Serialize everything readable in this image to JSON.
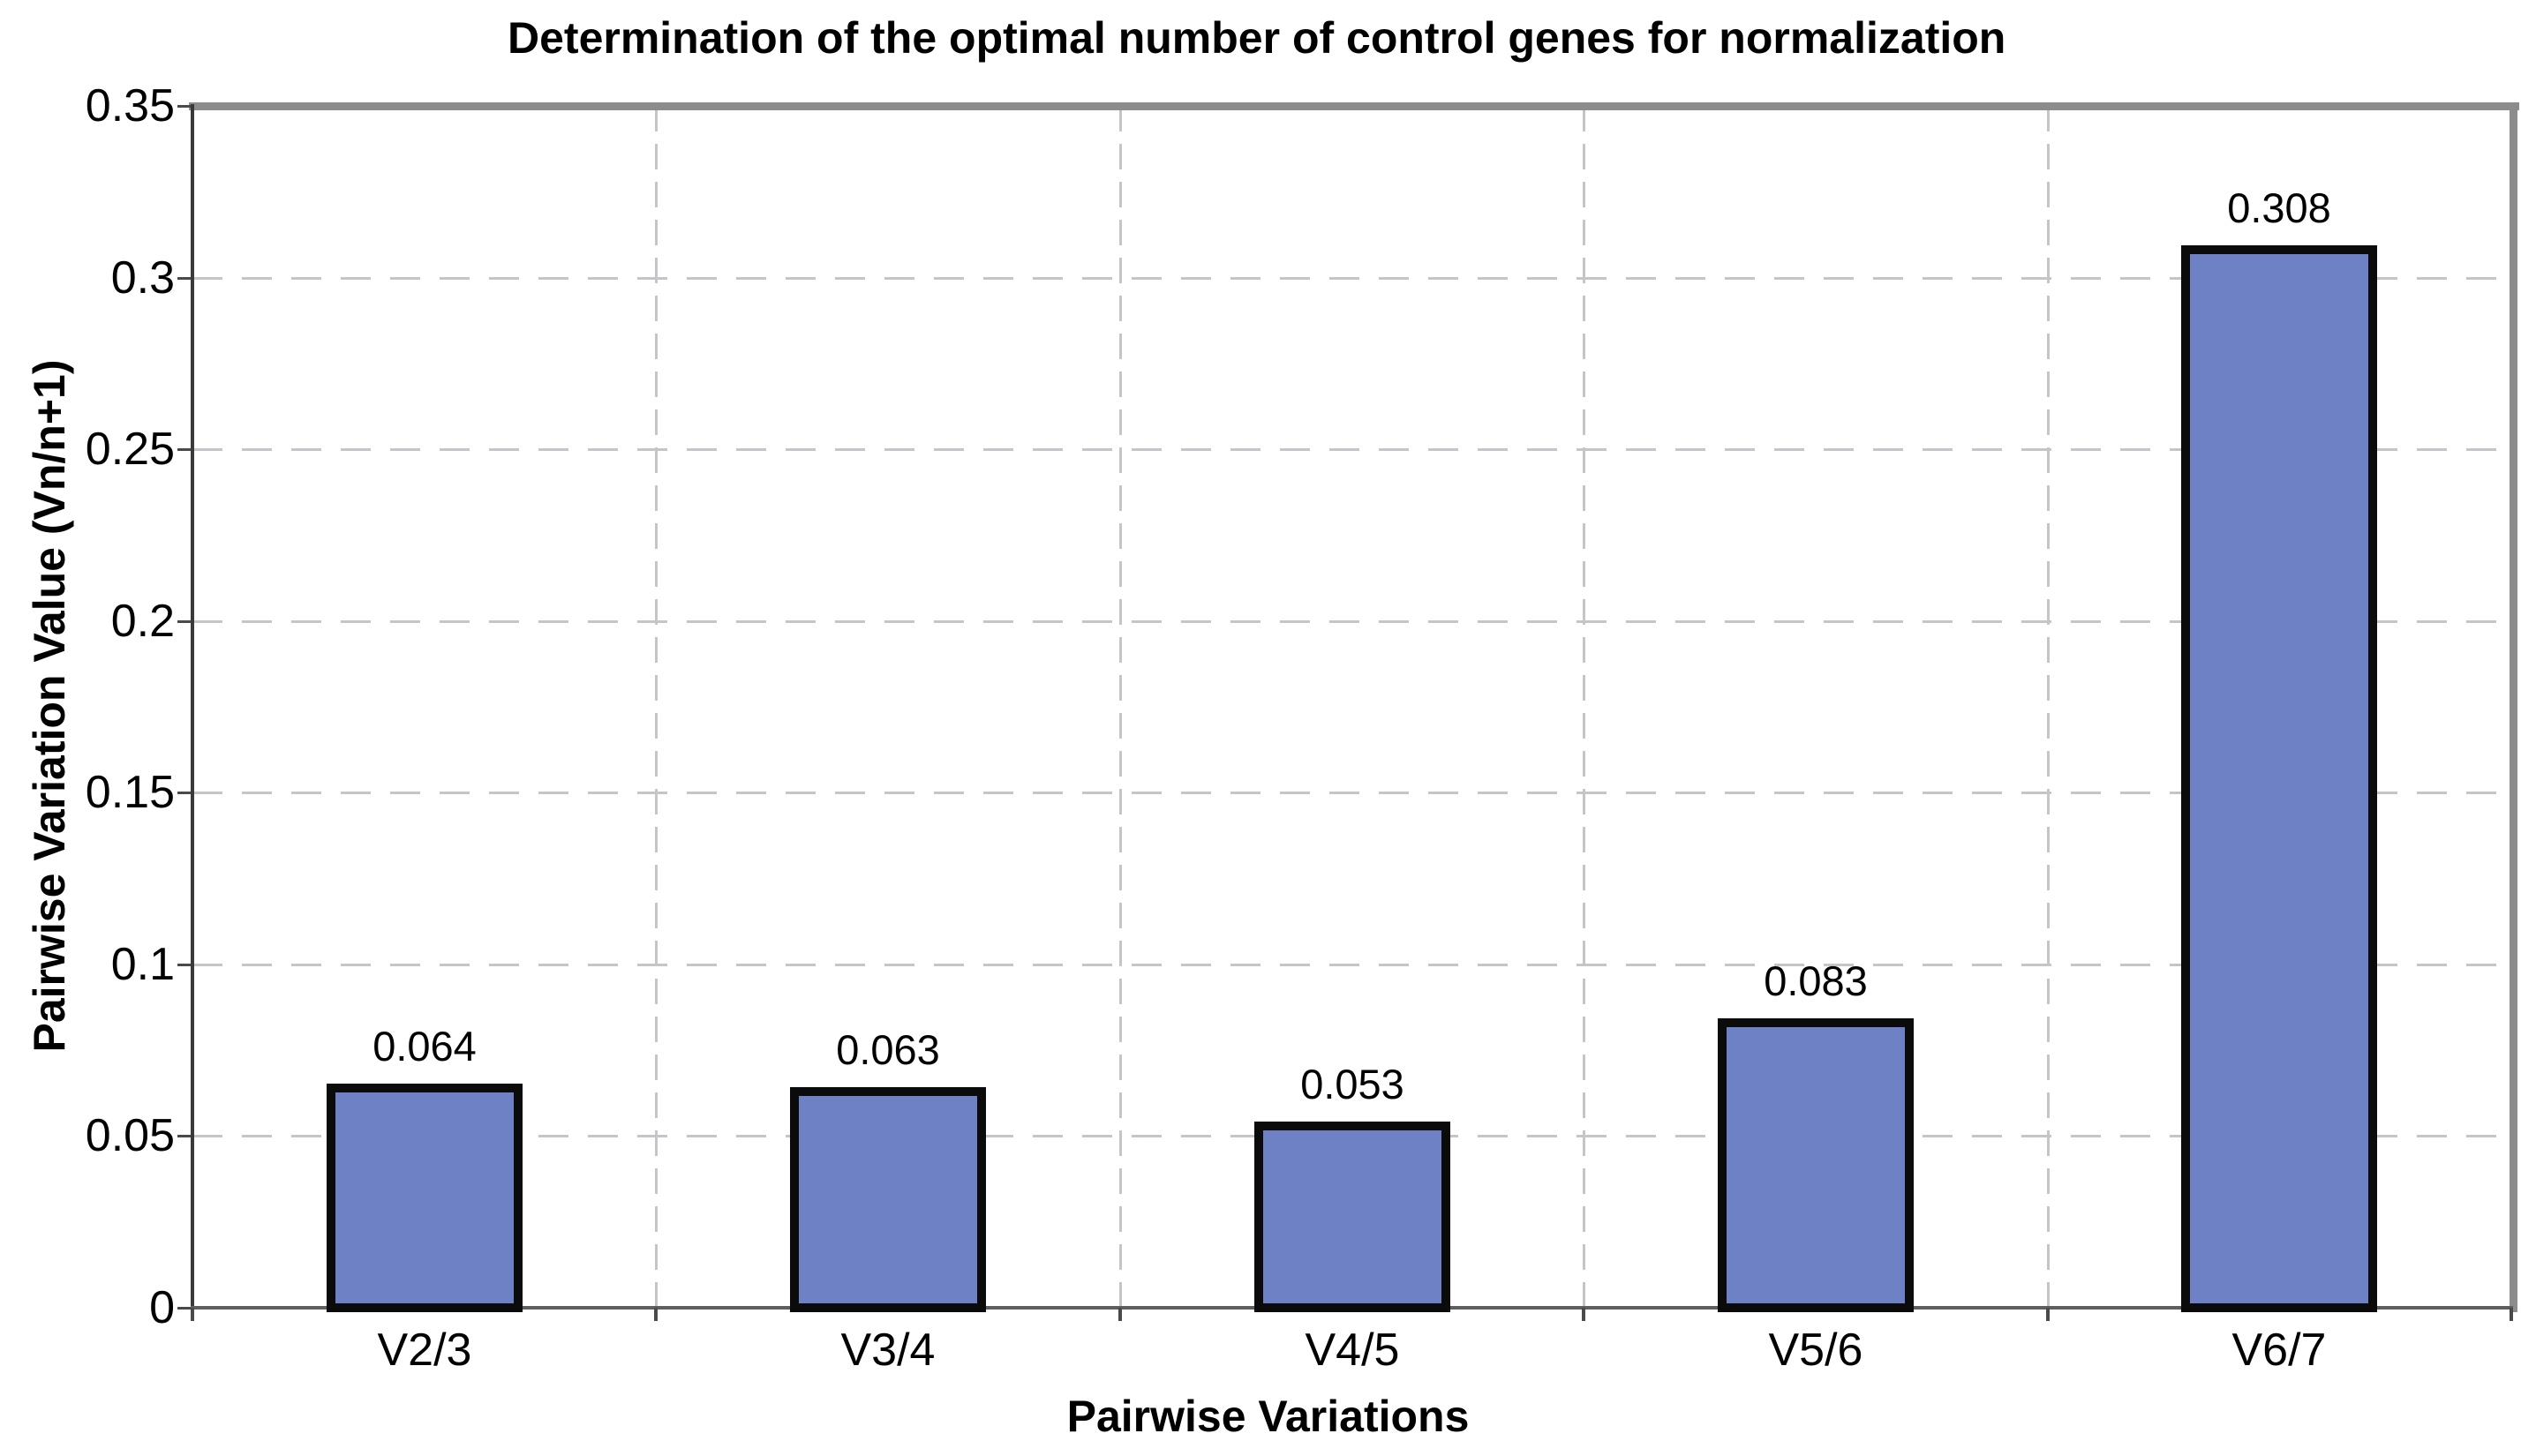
{
  "chart_data": {
    "type": "bar",
    "title": "Determination of the optimal number of control genes for normalization",
    "xlabel": "Pairwise Variations",
    "ylabel": "Pairwise Variation Value (Vn/n+1)",
    "categories": [
      "V2/3",
      "V3/4",
      "V4/5",
      "V5/6",
      "V6/7"
    ],
    "values": [
      0.064,
      0.063,
      0.053,
      0.083,
      0.308
    ],
    "value_labels": [
      "0.064",
      "0.063",
      "0.053",
      "0.083",
      "0.308"
    ],
    "y_tick_values": [
      0,
      0.05,
      0.1,
      0.15,
      0.2,
      0.25,
      0.3,
      0.35
    ],
    "y_tick_labels": [
      "0",
      "0.05",
      "0.1",
      "0.15",
      "0.2",
      "0.25",
      "0.3",
      "0.35"
    ],
    "ylim": [
      0,
      0.35
    ],
    "grid": "dashed light-gray horizontal lines at each y tick and dashed vertical lines at category boundaries",
    "legend": "none",
    "colors": {
      "bar_fill": "#6d81c4",
      "bar_border": "#0b0b0b",
      "gridline": "#c3c5c9",
      "frame_top_right": "#8c8c8c",
      "axis_left": "#3a3a3a",
      "axis_bottom": "#5f5f5f",
      "text": "#000000",
      "background": "#ffffff"
    }
  }
}
